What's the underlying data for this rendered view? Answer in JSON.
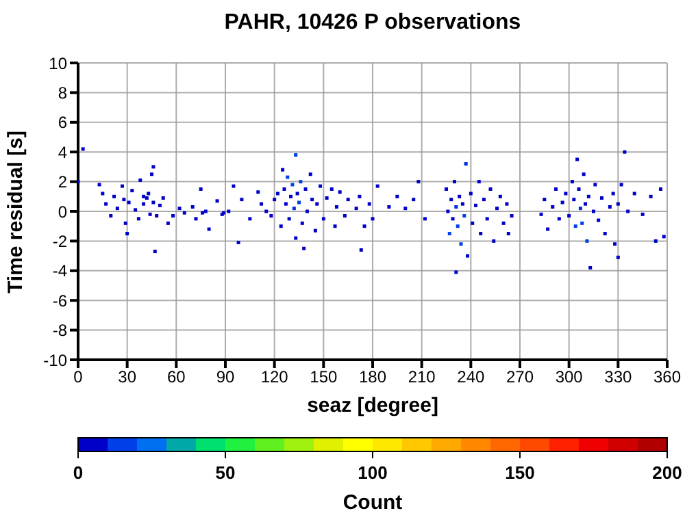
{
  "chart_data": {
    "type": "scatter",
    "title": "PAHR, 10426 P observations",
    "xlabel": "seaz [degree]",
    "ylabel": "Time residual [s]",
    "clabel": "Count",
    "x": [
      3,
      0,
      13,
      15,
      17,
      20,
      22,
      24,
      27,
      28,
      29,
      30,
      31,
      33,
      35,
      37,
      38,
      40,
      40,
      42,
      43,
      44,
      45,
      46,
      46,
      47,
      48,
      50,
      52,
      55,
      58,
      62,
      65,
      70,
      72,
      75,
      76,
      78,
      80,
      85,
      88,
      89,
      92,
      95,
      98,
      100,
      105,
      110,
      112,
      115,
      118,
      120,
      122,
      124,
      125,
      126,
      127,
      128,
      129,
      130,
      131,
      132,
      133,
      133,
      134,
      135,
      136,
      137,
      138,
      139,
      140,
      142,
      143,
      145,
      146,
      148,
      150,
      152,
      155,
      157,
      158,
      160,
      163,
      165,
      170,
      172,
      175,
      178,
      180,
      173,
      183,
      190,
      195,
      200,
      205,
      208,
      212,
      225,
      226,
      227,
      228,
      229,
      230,
      231,
      232,
      233,
      234,
      235,
      236,
      237,
      238,
      240,
      241,
      243,
      245,
      246,
      248,
      250,
      252,
      254,
      256,
      258,
      260,
      262,
      263,
      265,
      231,
      283,
      285,
      287,
      290,
      292,
      294,
      296,
      298,
      300,
      302,
      303,
      304,
      305,
      306,
      307,
      308,
      309,
      310,
      311,
      312,
      313,
      315,
      316,
      318,
      320,
      322,
      325,
      327,
      328,
      330,
      330,
      332,
      334,
      336,
      340,
      345,
      350,
      353,
      356,
      358
    ],
    "values": [
      4.2,
      2.0,
      1.8,
      1.2,
      0.5,
      -0.3,
      1.0,
      0.2,
      1.7,
      0.8,
      -0.8,
      -1.5,
      0.6,
      1.4,
      0.1,
      -0.5,
      2.1,
      1.0,
      0.5,
      0.9,
      1.2,
      -0.2,
      2.5,
      3.0,
      0.6,
      -2.7,
      -0.3,
      0.4,
      0.9,
      -0.8,
      -0.3,
      0.2,
      -0.1,
      0.3,
      -0.5,
      1.5,
      -0.1,
      0.0,
      -1.2,
      0.7,
      -0.2,
      -0.1,
      0.0,
      1.7,
      -2.1,
      0.8,
      -0.5,
      1.3,
      0.5,
      0.0,
      -0.3,
      0.8,
      1.2,
      -1.0,
      2.8,
      1.5,
      0.5,
      2.3,
      -0.5,
      1.0,
      1.8,
      0.2,
      3.8,
      -1.8,
      1.2,
      0.6,
      2.0,
      -0.8,
      -2.5,
      1.5,
      0.0,
      2.5,
      0.8,
      -1.3,
      0.5,
      1.7,
      -0.5,
      0.9,
      1.5,
      -1.0,
      0.3,
      1.3,
      -0.3,
      0.8,
      0.2,
      1.0,
      -1.0,
      0.5,
      -0.5,
      -2.6,
      1.7,
      0.3,
      1.0,
      0.2,
      0.8,
      2.0,
      -0.5,
      1.5,
      0.0,
      -1.5,
      0.8,
      -0.5,
      2.0,
      0.3,
      -1.0,
      1.0,
      -2.2,
      0.5,
      -0.3,
      3.2,
      -3.0,
      1.2,
      -0.8,
      0.4,
      2.0,
      -1.5,
      0.8,
      -0.5,
      1.5,
      -2.0,
      0.2,
      1.0,
      -0.8,
      0.5,
      -1.5,
      -0.3,
      -4.1,
      -0.2,
      0.8,
      -1.2,
      0.3,
      1.5,
      -0.5,
      0.6,
      1.2,
      -0.3,
      2.0,
      0.8,
      -1.0,
      3.5,
      1.5,
      0.2,
      -0.8,
      2.5,
      0.5,
      -2.0,
      1.0,
      -3.8,
      0.0,
      1.8,
      -0.6,
      0.9,
      -1.5,
      0.3,
      1.2,
      -2.2,
      0.5,
      -3.1,
      1.8,
      4.0,
      0.0,
      1.2,
      -0.2,
      1.0,
      -2.0,
      1.5,
      -1.7
    ],
    "cvalues": [
      1,
      1,
      1,
      1,
      1,
      1,
      1,
      1,
      1,
      1,
      1,
      1,
      1,
      2,
      1,
      1,
      1,
      1,
      2,
      3,
      1,
      1,
      1,
      1,
      1,
      2,
      1,
      1,
      1,
      1,
      1,
      1,
      1,
      1,
      1,
      1,
      1,
      2,
      2,
      1,
      1,
      1,
      1,
      1,
      1,
      1,
      1,
      1,
      1,
      1,
      1,
      1,
      2,
      2,
      1,
      1,
      3,
      15,
      2,
      3,
      15,
      12,
      15,
      1,
      1,
      15,
      15,
      2,
      3,
      1,
      2,
      3,
      1,
      3,
      1,
      2,
      1,
      2,
      1,
      1,
      1,
      2,
      1,
      1,
      2,
      1,
      1,
      1,
      1,
      1,
      1,
      1,
      1,
      1,
      1,
      1,
      1,
      1,
      1,
      15,
      1,
      3,
      2,
      12,
      15,
      3,
      15,
      1,
      15,
      12,
      1,
      1,
      3,
      2,
      3,
      1,
      1,
      2,
      1,
      1,
      1,
      2,
      1,
      1,
      2,
      1,
      2,
      1,
      1,
      2,
      1,
      2,
      1,
      3,
      2,
      2,
      3,
      1,
      15,
      3,
      1,
      12,
      15,
      3,
      1,
      15,
      1,
      1,
      2,
      1,
      1,
      2,
      1,
      2,
      1,
      1,
      1,
      1,
      1,
      1,
      1,
      1,
      1,
      1,
      1,
      1,
      1
    ],
    "xlim": [
      0,
      360
    ],
    "xticks": [
      0,
      30,
      60,
      90,
      120,
      150,
      180,
      210,
      240,
      270,
      300,
      330,
      360
    ],
    "ylim": [
      -10,
      10
    ],
    "yticks": [
      -10,
      -8,
      -6,
      -4,
      -2,
      0,
      2,
      4,
      6,
      8,
      10
    ],
    "clim": [
      0,
      200
    ],
    "cticks": [
      0,
      50,
      100,
      150,
      200
    ],
    "grid": true,
    "marker": "square"
  }
}
